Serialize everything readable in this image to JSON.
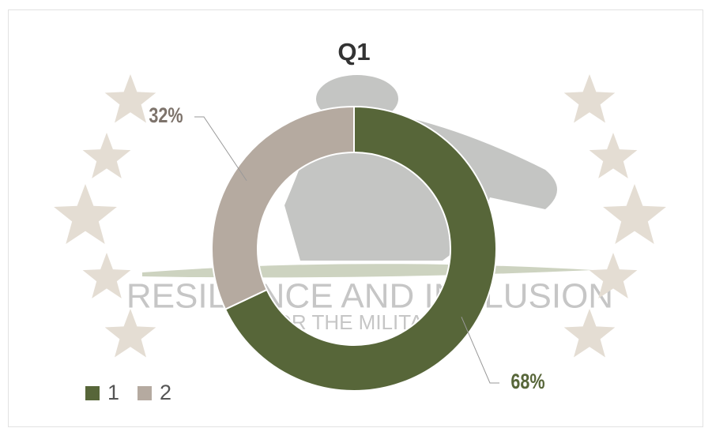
{
  "chart_data": {
    "type": "donut",
    "title": "Q1",
    "categories": [
      "1",
      "2"
    ],
    "values": [
      68,
      32
    ],
    "value_labels": [
      "68%",
      "32%"
    ],
    "colors": [
      "#576639",
      "#b5aaa0"
    ],
    "legend": "bottom-left",
    "watermark": [
      "RESILIENCE AND INCLUSION",
      "FOR THE MILITARY"
    ]
  }
}
